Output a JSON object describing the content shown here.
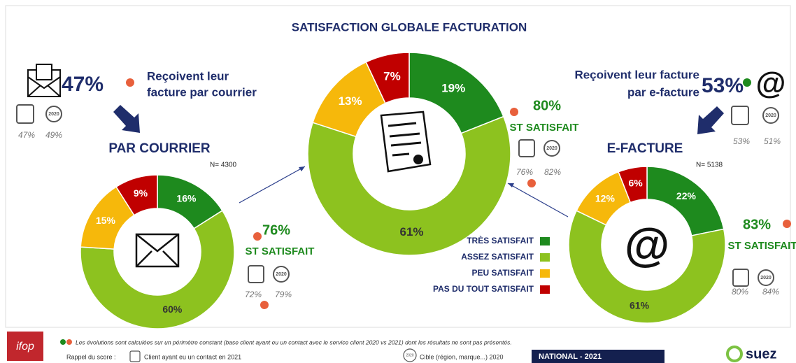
{
  "title": "SATISFACTION GLOBALE FACTURATION",
  "chart_data": [
    {
      "type": "donut",
      "title": "PAR COURRIER",
      "note": "N= 4300",
      "values": [
        16,
        60,
        15,
        9
      ],
      "value_labels": [
        "16%",
        "60%",
        "15%",
        "9%"
      ],
      "colors": [
        "#1e8a1e",
        "#8dc21f",
        "#f6b80b",
        "#c00000"
      ],
      "score": "76%",
      "score_label": "ST SATISFAIT",
      "score_client": "72%",
      "score_target": "79%"
    },
    {
      "type": "donut",
      "categories": [
        "TRÈS SATISFAIT",
        "ASSEZ SATISFAIT",
        "PEU SATISFAIT",
        "PAS DU TOUT SATISFAIT"
      ],
      "values": [
        19,
        61,
        13,
        7
      ],
      "value_labels": [
        "19%",
        "61%",
        "13%",
        "7%"
      ],
      "colors": [
        "#1e8a1e",
        "#8dc21f",
        "#f6b80b",
        "#c00000"
      ],
      "legend": true,
      "score": "80%",
      "score_label": "ST SATISFAIT",
      "score_client": "76%",
      "score_target": "82%"
    },
    {
      "type": "donut",
      "title": "E-FACTURE",
      "note": "N= 5138",
      "values": [
        22,
        61,
        12,
        6
      ],
      "value_labels": [
        "22%",
        "61%",
        "12%",
        "6%"
      ],
      "colors": [
        "#1e8a1e",
        "#8dc21f",
        "#f6b80b",
        "#c00000"
      ],
      "score": "83%",
      "score_label": "ST SATISFAIT",
      "score_client": "80%",
      "score_target": "84%"
    }
  ],
  "courrier": {
    "share": "47%",
    "text": [
      "Reçoivent leur",
      "facture par courrier"
    ],
    "client": "47%",
    "target": "49%"
  },
  "efacture": {
    "share": "53%",
    "text": [
      "Reçoivent leur facture",
      "par e-facture"
    ],
    "client": "53%",
    "target": "51%",
    "icon": "@"
  },
  "pin_label": "2020",
  "footer": {
    "note": "Les évolutions sont calculées sur un périmètre constant (base client ayant eu un contact avec le service client 2020 vs 2021) dont les résultats ne sont pas présentés.",
    "reminder": "Rappel du score :",
    "client_legend": "Client ayant eu un contact en 2021",
    "target_legend": "Cible (région, marque...) 2020",
    "scope": "NATIONAL - 2021",
    "brand": "suez",
    "institute": "ifop"
  }
}
